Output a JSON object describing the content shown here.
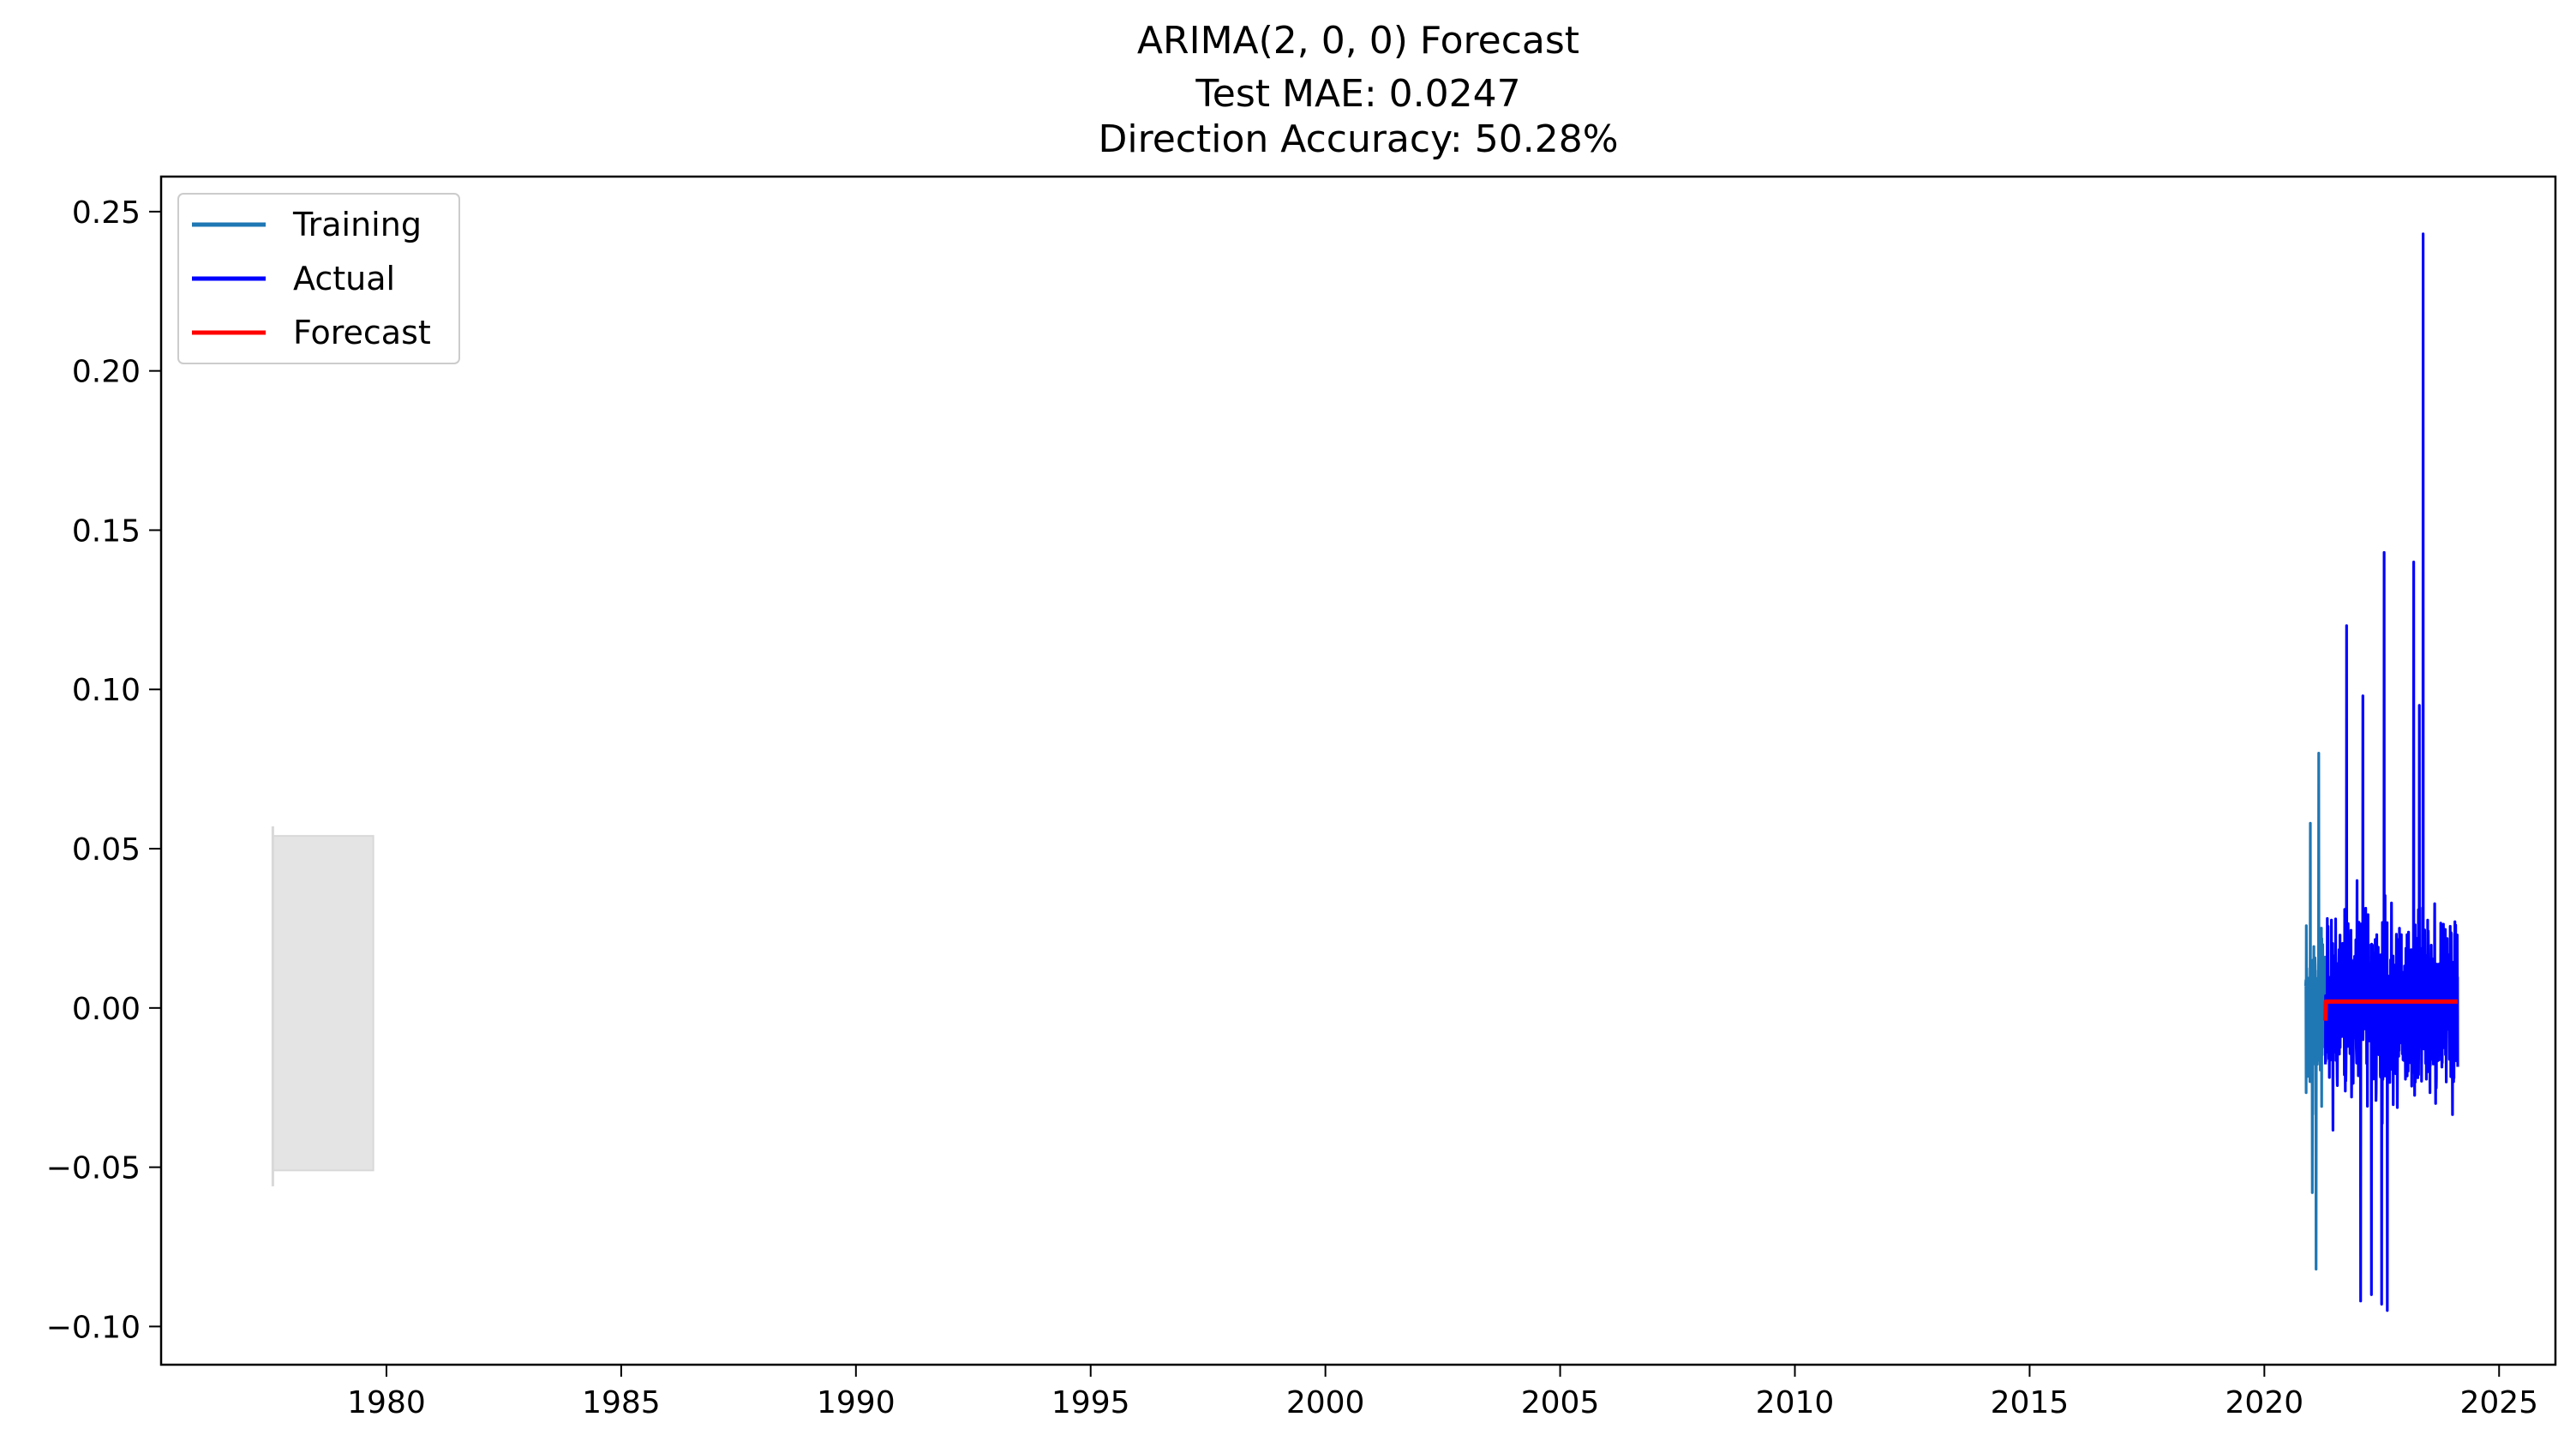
{
  "chart_data": {
    "type": "line",
    "title_lines": [
      "ARIMA(2, 0, 0) Forecast",
      "Test MAE: 0.0247",
      "Direction Accuracy: 50.28%"
    ],
    "xlabel": "",
    "ylabel": "",
    "xlim": [
      1975.2,
      2026.2
    ],
    "ylim": [
      -0.112,
      0.261
    ],
    "x_ticks": [
      1980,
      1985,
      1990,
      1995,
      2000,
      2005,
      2010,
      2015,
      2020,
      2025
    ],
    "x_tick_labels": [
      "1980",
      "1985",
      "1990",
      "1995",
      "2000",
      "2005",
      "2010",
      "2015",
      "2020",
      "2025"
    ],
    "y_ticks": [
      -0.1,
      -0.05,
      0.0,
      0.05,
      0.1,
      0.15,
      0.2,
      0.25
    ],
    "y_tick_labels": [
      "−0.10",
      "−0.05",
      "0.00",
      "0.05",
      "0.10",
      "0.15",
      "0.20",
      "0.25"
    ],
    "legend_position": "top-left",
    "grid": false,
    "confidence_band": {
      "color": "#e4e4e4",
      "x_start": 1977.58,
      "x_end": 1979.72,
      "lower": -0.051,
      "upper": 0.054
    },
    "series": [
      {
        "name": "Training",
        "color": "#1f77b4",
        "x_start": 2020.88,
        "x_end": 2021.3,
        "n_points": 90,
        "seed": 7,
        "scale": 0.028,
        "peaks": [
          [
            2021.16,
            0.08
          ],
          [
            2021.1,
            -0.082
          ],
          [
            2020.98,
            0.058
          ],
          [
            2021.02,
            -0.058
          ]
        ]
      },
      {
        "name": "Actual",
        "color": "#0000ff",
        "x_start": 2021.3,
        "x_end": 2024.12,
        "n_points": 700,
        "seed": 11,
        "scale": 0.03,
        "peaks": [
          [
            2023.38,
            0.243
          ],
          [
            2022.55,
            0.143
          ],
          [
            2023.18,
            0.14
          ],
          [
            2021.75,
            0.12
          ],
          [
            2022.1,
            0.098
          ],
          [
            2022.62,
            -0.095
          ],
          [
            2022.5,
            -0.093
          ],
          [
            2022.05,
            -0.092
          ],
          [
            2022.28,
            -0.09
          ],
          [
            2023.3,
            0.095
          ]
        ]
      },
      {
        "name": "Forecast",
        "color": "#ff0000",
        "x_start": 2021.3,
        "x_end": 2024.12,
        "level": 0.002,
        "start_dip": -0.004
      }
    ]
  }
}
